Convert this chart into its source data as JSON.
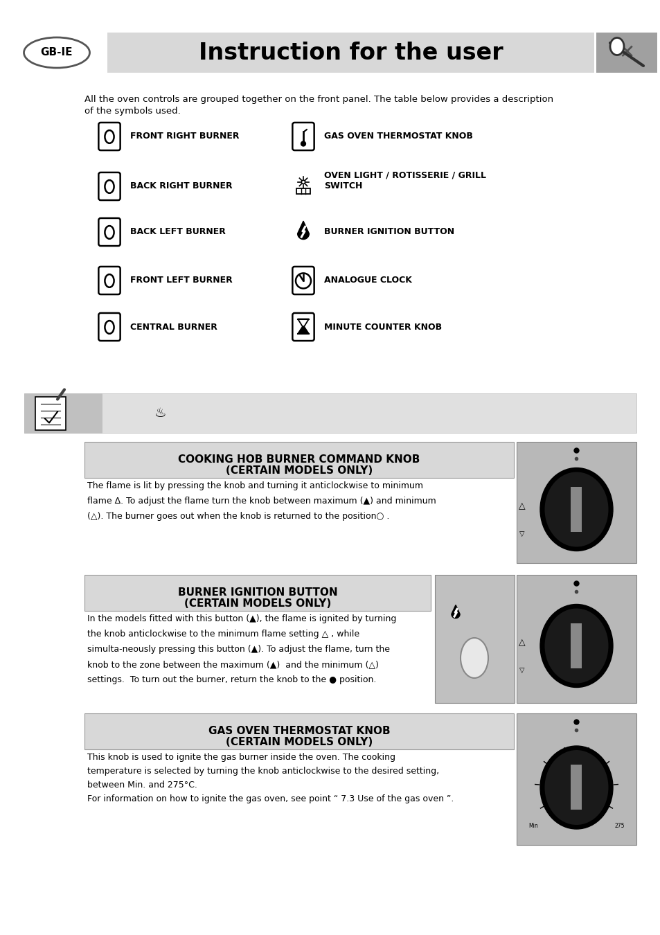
{
  "page_bg": "#ffffff",
  "header_bg": "#d8d8d8",
  "header_title": "Instruction for the user",
  "gbie_label": "GB-IE",
  "intro_text": "All the oven controls are grouped together on the front panel. The table below provides a description\nof the symbols used.",
  "symbols_left": [
    "FRONT RIGHT BURNER",
    "BACK RIGHT BURNER",
    "BACK LEFT BURNER",
    "FRONT LEFT BURNER",
    "CENTRAL BURNER"
  ],
  "symbols_right": [
    "GAS OVEN THERMOSTAT KNOB",
    "OVEN LIGHT / ROTISSERIE / GRILL\nSWITCH",
    "BURNER IGNITION BUTTON",
    "ANALOGUE CLOCK",
    "MINUTE COUNTER KNOB"
  ],
  "section1_title1": "COOKING HOB BURNER COMMAND KNOB",
  "section1_title2": "(CERTAIN MODELS ONLY)",
  "section1_text": "The flame is lit by pressing the knob and turning it anticlockwise to minimum\nflame Δ. To adjust the flame turn the knob between maximum (▲) and minimum\n(△). The burner goes out when the knob is returned to the position○ .",
  "section2_title1": "BURNER IGNITION BUTTON",
  "section2_title2": "(CERTAIN MODELS ONLY)",
  "section2_text": "In the models fitted with this button (▲), the flame is ignited by turning\nthe knob anticlockwise to the minimum flame setting △ , while\nsimulta-neously pressing this button (▲). To adjust the flame, turn the\nknob to the zone between the maximum (▲)  and the minimum (△)\nsettings.  To turn out the burner, return the knob to the ● position.",
  "section3_title1": "GAS OVEN THERMOSTAT KNOB",
  "section3_title2": "(CERTAIN MODELS ONLY)",
  "section3_text": "This knob is used to ignite the gas burner inside the oven. The cooking\ntemperature is selected by turning the knob anticlockwise to the desired setting,\nbetween Min. and 275°C.\nFor information on how to ignite the gas oven, see point “ 7.3 Use of the gas oven ”.",
  "header_title_fontsize": 24,
  "label_fontsize": 9,
  "text_fontsize": 9,
  "section_title_fontsize": 11
}
